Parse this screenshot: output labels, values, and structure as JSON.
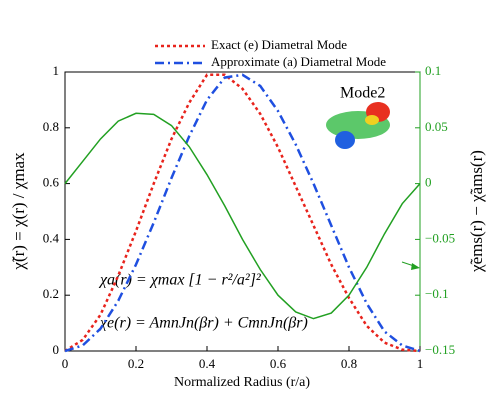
{
  "chart_data": {
    "type": "line",
    "x_label": "Normalized Radius (r/a)",
    "y_label": "χ̃(r) = χ(r) / χmax",
    "y2_label": "χ̃ems(r) − χ̃ams(r)",
    "annotations": [
      "Mode2",
      "χa(r) = χmax [1 − r²/a²]²",
      "χe(r) = AmnJn(βr) + CmnJn(βr)"
    ],
    "x": [
      0,
      0.05,
      0.1,
      0.15,
      0.2,
      0.25,
      0.3,
      0.35,
      0.4,
      0.45,
      0.5,
      0.55,
      0.6,
      0.65,
      0.7,
      0.75,
      0.8,
      0.85,
      0.9,
      0.95,
      1
    ],
    "series": [
      {
        "name": "Exact (e) Diametral Mode",
        "color": "#e8231c",
        "dash": "3,3",
        "values": [
          0,
          0.04,
          0.13,
          0.27,
          0.43,
          0.6,
          0.76,
          0.89,
          0.99,
          0.99,
          0.94,
          0.85,
          0.73,
          0.59,
          0.45,
          0.31,
          0.19,
          0.09,
          0.03,
          0.005,
          0
        ]
      },
      {
        "name": "Approximate (a) Diametral Mode",
        "color": "#1f4fe0",
        "dash": "9,4,2,4",
        "values": [
          0,
          0.02,
          0.08,
          0.18,
          0.31,
          0.46,
          0.62,
          0.77,
          0.9,
          0.98,
          0.99,
          0.95,
          0.86,
          0.74,
          0.6,
          0.45,
          0.3,
          0.17,
          0.07,
          0.02,
          0
        ]
      },
      {
        "color": "#22a022",
        "axis": "y2",
        "values": [
          0,
          0.02,
          0.04,
          0.056,
          0.063,
          0.062,
          0.052,
          0.033,
          0.008,
          -0.02,
          -0.05,
          -0.077,
          -0.1,
          -0.115,
          -0.121,
          -0.116,
          -0.1,
          -0.075,
          -0.045,
          -0.018,
          0
        ]
      }
    ],
    "xlim": [
      0,
      1
    ],
    "xticks": [
      0,
      0.2,
      0.4,
      0.6,
      0.8,
      1
    ],
    "ylim": [
      0,
      1
    ],
    "yticks": [
      0,
      0.2,
      0.4,
      0.6,
      0.8,
      1
    ],
    "y2lim": [
      -0.15,
      0.1
    ],
    "y2ticks": [
      {
        "value": -0.15,
        "label": "−0.15"
      },
      {
        "value": -0.1,
        "label": "−0.1"
      },
      {
        "value": -0.05,
        "label": "−0.05"
      },
      0,
      0.05,
      0.1
    ],
    "y2color": "#22a022",
    "legend": "top"
  }
}
